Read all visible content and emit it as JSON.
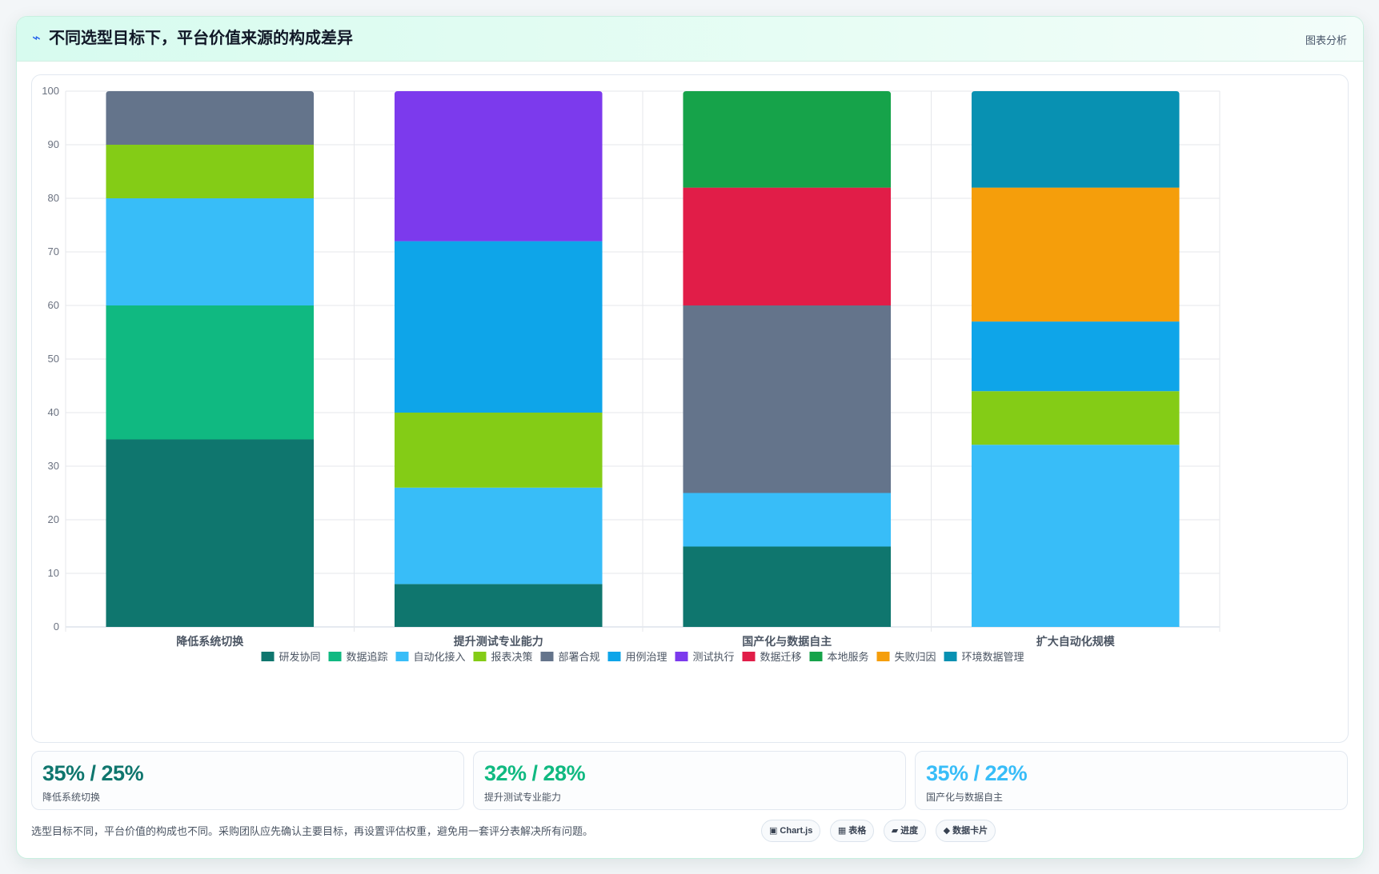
{
  "header": {
    "icon": "bolt-icon",
    "title": "不同选型目标下，平台价值来源的构成差异",
    "link_label": "图表分析"
  },
  "chart_data": {
    "type": "bar",
    "stacked": true,
    "ylim": [
      0,
      100
    ],
    "yticks": [
      0,
      10,
      20,
      30,
      40,
      50,
      60,
      70,
      80,
      90,
      100
    ],
    "grid": true,
    "legend_position": "bottom",
    "categories": [
      "降低系统切换",
      "提升测试专业能力",
      "国产化与数据自主",
      "扩大自动化规模"
    ],
    "series": [
      {
        "name": "研发协同",
        "color": "#0f766e",
        "values": [
          35,
          8,
          15,
          0
        ]
      },
      {
        "name": "数据追踪",
        "color": "#10b981",
        "values": [
          25,
          0,
          0,
          0
        ]
      },
      {
        "name": "自动化接入",
        "color": "#38bdf8",
        "values": [
          20,
          18,
          10,
          34
        ]
      },
      {
        "name": "报表决策",
        "color": "#84cc16",
        "values": [
          10,
          14,
          0,
          10
        ]
      },
      {
        "name": "部署合规",
        "color": "#64748b",
        "values": [
          10,
          0,
          35,
          0
        ]
      },
      {
        "name": "用例治理",
        "color": "#0ea5e9",
        "values": [
          0,
          32,
          0,
          13
        ]
      },
      {
        "name": "测试执行",
        "color": "#7c3aed",
        "values": [
          0,
          28,
          0,
          0
        ]
      },
      {
        "name": "数据迁移",
        "color": "#e11d48",
        "values": [
          0,
          0,
          22,
          0
        ]
      },
      {
        "name": "本地服务",
        "color": "#16a34a",
        "values": [
          0,
          0,
          18,
          0
        ]
      },
      {
        "name": "失败归因",
        "color": "#f59e0b",
        "values": [
          0,
          0,
          0,
          25
        ]
      },
      {
        "name": "环境数据管理",
        "color": "#0891b2",
        "values": [
          0,
          0,
          0,
          18
        ]
      }
    ]
  },
  "stats": [
    {
      "value": "35% / 25%",
      "label": "降低系统切换",
      "color": "#0f766e"
    },
    {
      "value": "32% / 28%",
      "label": "提升测试专业能力",
      "color": "#10b981"
    },
    {
      "value": "35% / 22%",
      "label": "国产化与数据自主",
      "color": "#38bdf8"
    }
  ],
  "footnote": "选型目标不同，平台价值的构成也不同。采购团队应先确认主要目标，再设置评估权重，避免用一套评分表解决所有问题。",
  "chips": [
    {
      "icon": "chart-icon",
      "glyph": "▣",
      "label": "Chart.js"
    },
    {
      "icon": "table-icon",
      "glyph": "▦",
      "label": "表格"
    },
    {
      "icon": "progress-icon",
      "glyph": "▰",
      "label": "进度"
    },
    {
      "icon": "data-card-icon",
      "glyph": "◆",
      "label": "数据卡片"
    }
  ]
}
